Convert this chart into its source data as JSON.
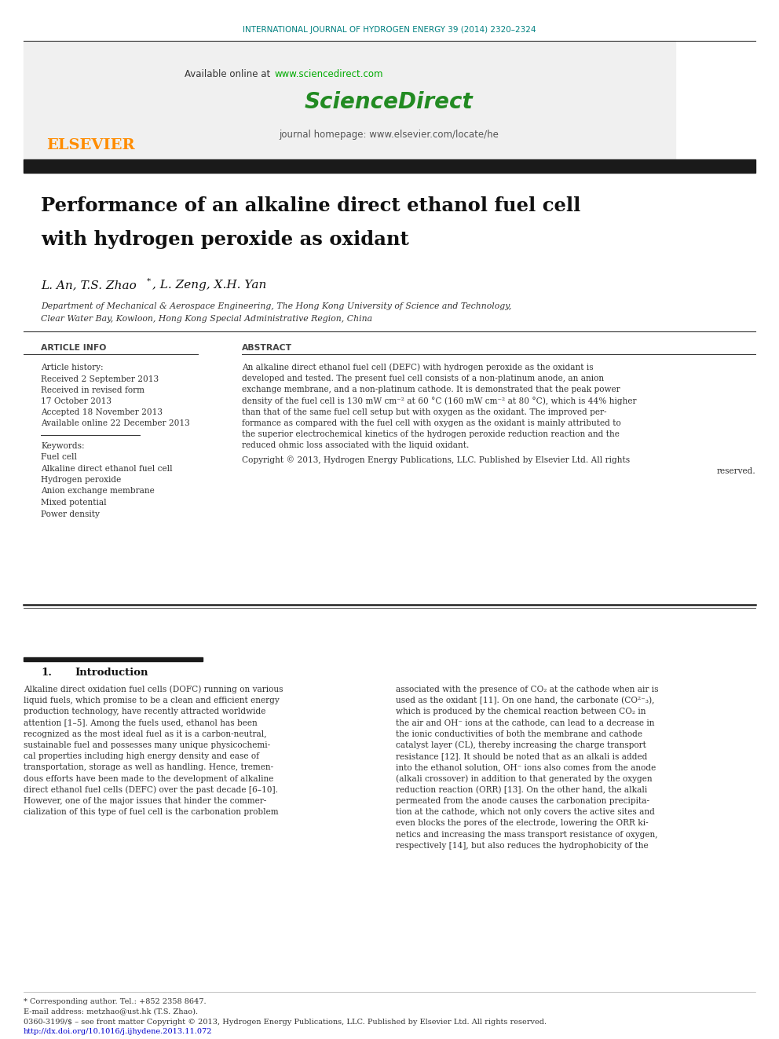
{
  "bg_color": "#ffffff",
  "header_journal": "INTERNATIONAL JOURNAL OF HYDROGEN ENERGY 39 (2014) 2320–2324",
  "header_color": "#008080",
  "available_text": "Available online at ",
  "url_sciencedirect": "www.sciencedirect.com",
  "url_color": "#00aa00",
  "sciencedirect_text": "ScienceDirect",
  "sciencedirect_color": "#228B22",
  "journal_homepage": "journal homepage: www.elsevier.com/locate/he",
  "elsevier_color": "#FF8C00",
  "elsevier_text": "ELSEVIER",
  "black_bar_color": "#1a1a1a",
  "paper_title_line1": "Performance of an alkaline direct ethanol fuel cell",
  "paper_title_line2": "with hydrogen peroxide as oxidant",
  "authors": "L. An, T.S. Zhao",
  "authors_star": "*",
  "authors_rest": ", L. Zeng, X.H. Yan",
  "affiliation1": "Department of Mechanical & Aerospace Engineering, The Hong Kong University of Science and Technology,",
  "affiliation2": "Clear Water Bay, Kowloon, Hong Kong Special Administrative Region, China",
  "article_info_header": "ARTICLE INFO",
  "abstract_header": "ABSTRACT",
  "article_history_label": "Article history:",
  "received1": "Received 2 September 2013",
  "received2_label": "Received in revised form",
  "received2_date": "17 October 2013",
  "accepted": "Accepted 18 November 2013",
  "available_online": "Available online 22 December 2013",
  "keywords_label": "Keywords:",
  "keywords": [
    "Fuel cell",
    "Alkaline direct ethanol fuel cell",
    "Hydrogen peroxide",
    "Anion exchange membrane",
    "Mixed potential",
    "Power density"
  ],
  "abstract_lines": [
    "An alkaline direct ethanol fuel cell (DEFC) with hydrogen peroxide as the oxidant is",
    "developed and tested. The present fuel cell consists of a non-platinum anode, an anion",
    "exchange membrane, and a non-platinum cathode. It is demonstrated that the peak power",
    "density of the fuel cell is 130 mW cm⁻² at 60 °C (160 mW cm⁻² at 80 °C), which is 44% higher",
    "than that of the same fuel cell setup but with oxygen as the oxidant. The improved per-",
    "formance as compared with the fuel cell with oxygen as the oxidant is mainly attributed to",
    "the superior electrochemical kinetics of the hydrogen peroxide reduction reaction and the",
    "reduced ohmic loss associated with the liquid oxidant."
  ],
  "copyright_line1": "Copyright © 2013, Hydrogen Energy Publications, LLC. Published by Elsevier Ltd. All rights",
  "copyright_line2": "reserved.",
  "intro_left_lines": [
    "Alkaline direct oxidation fuel cells (DOFC) running on various",
    "liquid fuels, which promise to be a clean and efficient energy",
    "production technology, have recently attracted worldwide",
    "attention [1–5]. Among the fuels used, ethanol has been",
    "recognized as the most ideal fuel as it is a carbon-neutral,",
    "sustainable fuel and possesses many unique physicochemi-",
    "cal properties including high energy density and ease of",
    "transportation, storage as well as handling. Hence, tremen-",
    "dous efforts have been made to the development of alkaline",
    "direct ethanol fuel cells (DEFC) over the past decade [6–10].",
    "However, one of the major issues that hinder the commer-",
    "cialization of this type of fuel cell is the carbonation problem"
  ],
  "intro_right_lines": [
    "associated with the presence of CO₂ at the cathode when air is",
    "used as the oxidant [11]. On one hand, the carbonate (CO²⁻₃),",
    "which is produced by the chemical reaction between CO₂ in",
    "the air and OH⁻ ions at the cathode, can lead to a decrease in",
    "the ionic conductivities of both the membrane and cathode",
    "catalyst layer (CL), thereby increasing the charge transport",
    "resistance [12]. It should be noted that as an alkali is added",
    "into the ethanol solution, OH⁻ ions also comes from the anode",
    "(alkali crossover) in addition to that generated by the oxygen",
    "reduction reaction (ORR) [13]. On the other hand, the alkali",
    "permeated from the anode causes the carbonation precipita-",
    "tion at the cathode, which not only covers the active sites and",
    "even blocks the pores of the electrode, lowering the ORR ki-",
    "netics and increasing the mass transport resistance of oxygen,",
    "respectively [14], but also reduces the hydrophobicity of the"
  ],
  "footnote1": "* Corresponding author. Tel.: +852 2358 8647.",
  "footnote2": "E-mail address: metzhao@ust.hk (T.S. Zhao).",
  "footnote3": "0360-3199/$ – see front matter Copyright © 2013, Hydrogen Energy Publications, LLC. Published by Elsevier Ltd. All rights reserved.",
  "footnote4": "http://dx.doi.org/10.1016/j.ijhydene.2013.11.072",
  "footnote4_color": "#0000cc",
  "header_gray_bg": "#f0f0f0"
}
